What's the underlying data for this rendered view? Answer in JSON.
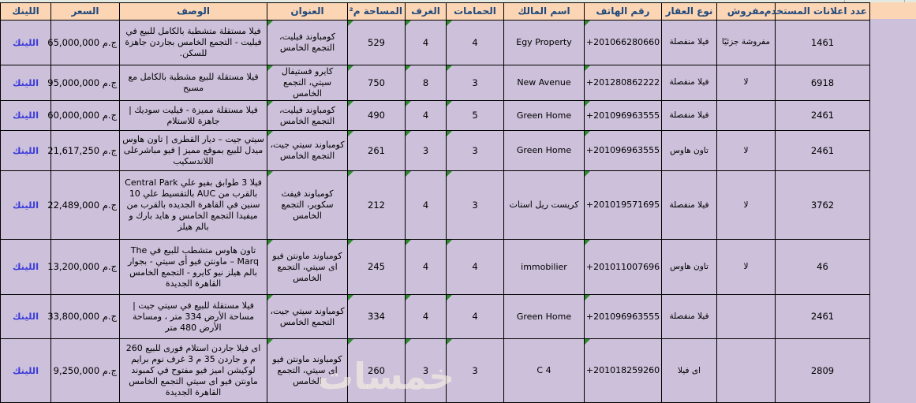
{
  "colors": {
    "header_bg": "#fcd5b4",
    "header_text": "#1f497d",
    "cell_bg": "#ccc0da",
    "link_text": "#3b3bdb",
    "border": "#000000",
    "error_indicator": "#2e8b2e"
  },
  "watermark": {
    "text": "خمسات"
  },
  "table": {
    "error_indicator_columns": [
      "address",
      "area",
      "rooms",
      "baths",
      "phone"
    ],
    "headers": [
      {
        "key": "link",
        "label": "اللينك"
      },
      {
        "key": "price",
        "label": "السعر"
      },
      {
        "key": "desc",
        "label": "الوصف"
      },
      {
        "key": "address",
        "label": "العنوان"
      },
      {
        "key": "area",
        "label": "المساحة م²"
      },
      {
        "key": "rooms",
        "label": "الغرف"
      },
      {
        "key": "baths",
        "label": "الحمامات"
      },
      {
        "key": "owner",
        "label": "اسم المالك"
      },
      {
        "key": "phone",
        "label": "رقم الهاتف"
      },
      {
        "key": "type",
        "label": "نوع العقار"
      },
      {
        "key": "furnished",
        "label": "مفروش"
      },
      {
        "key": "ads",
        "label": "عدد اعلانات المستخدم"
      }
    ],
    "rows": [
      {
        "link": "اللينك",
        "price": "ج.م 65,000,000",
        "desc": "فيلا مستقلة متشطبة بالكامل للبيع في فيليت - التجمع الخامس بجاردن جاهزة للسكن.",
        "address": "كومباوند فيليت، التجمع الخامس",
        "area": "529",
        "rooms": "4",
        "baths": "4",
        "owner": "Egy Property",
        "phone": "+201066280660",
        "type": "فيلا منفصلة",
        "furnished": "مفروشة جزئيًا",
        "ads": "1461"
      },
      {
        "link": "اللينك",
        "price": "ج.م 95,000,000",
        "desc": "فيلا مستقلة للبيع مشطبة بالكامل مع مسبح",
        "address": "كايرو فستيفال سيتي، التجمع الخامس",
        "area": "750",
        "rooms": "8",
        "baths": "3",
        "owner": "New Avenue",
        "phone": "+201280862222",
        "type": "فيلا منفصلة",
        "furnished": "لا",
        "ads": "6918"
      },
      {
        "link": "اللينك",
        "price": "ج.م 60,000,000",
        "desc": "فيلا مستقلة مميزة - فيليت سوديك | جاهزة للاستلام",
        "address": "كومباوند فيليت، التجمع الخامس",
        "area": "490",
        "rooms": "4",
        "baths": "5",
        "owner": "Green Home",
        "phone": "+201096963555",
        "type": "فيلا منفصلة",
        "furnished": "",
        "ads": "2461"
      },
      {
        "link": "اللينك",
        "price": "ج.م 21,617,250",
        "desc": "سيتي جيت – ديار القطرى | تاون هاوس ميدل للبيع بموقع مميز | فيو مباشرعلى اللاندسكيب",
        "address": "كومباوند سيتي جيت، التجمع الخامس",
        "area": "261",
        "rooms": "3",
        "baths": "3",
        "owner": "Green Home",
        "phone": "+201096963555",
        "type": "تاون هاوس",
        "furnished": "لا",
        "ads": "2461"
      },
      {
        "link": "اللينك",
        "price": "ج.م 22,489,000",
        "desc": "فيلا 3 طوابق بفيو علي Central Park بالقرب من AUC بالتقسيط علي 10 سنين في القاهرة الجديده بالقرب من ميفيدا التجمع الخامس و هايد بارك و بالم هيلز",
        "address": "كومباوند فيفث سكوير، التجمع الخامس",
        "area": "212",
        "rooms": "4",
        "baths": "3",
        "owner": "كريست ريل استات",
        "phone": "+201019571695",
        "type": "فيلا منفصلة",
        "furnished": "لا",
        "ads": "3762"
      },
      {
        "link": "اللينك",
        "price": "ج.م 13,200,000",
        "desc": "تاون هاوس متشطب للبيع في The Marq – ماونتن فيو أى سيتي - بجوار بالم هيلز نيو كايرو - التجمع الخامس القاهرة الجديدة",
        "address": "كومباوند ماونتن فيو اى سيتي، التجمع الخامس",
        "area": "245",
        "rooms": "4",
        "baths": "4",
        "owner": "immobilier",
        "phone": "+201011007696",
        "type": "تاون هاوس",
        "furnished": "لا",
        "ads": "46"
      },
      {
        "link": "اللينك",
        "price": "ج.م 33,800,000",
        "desc": "فيلا مستقلة للبيع في سيتي جيت | مساحة الأرض 334 متر ، ومساحة الأرض 480 متر",
        "address": "كومباوند سيتي جيت، التجمع الخامس",
        "area": "334",
        "rooms": "4",
        "baths": "4",
        "owner": "Green Home",
        "phone": "+201096963555",
        "type": "فيلا منفصلة",
        "furnished": "",
        "ads": "2461"
      },
      {
        "link": "اللينك",
        "price": "ج.م 9,250,000",
        "desc": "اى فيلا جاردن استلام فورى للبيع 260 م و جاردن 35 م 3 غرف نوم برايم لوكيشن اميز فيو مفتوح في كمبوند ماونتن فيو اى سيتي التجمع الخامس القاهرة الجديدة",
        "address": "كومباوند ماونتن فيو اى سيتي، التجمع الخامس",
        "area": "260",
        "rooms": "3",
        "baths": "3",
        "owner": "4 C",
        "phone": "+201018259260",
        "type": "اى فيلا",
        "furnished": "",
        "ads": "2809"
      }
    ]
  }
}
